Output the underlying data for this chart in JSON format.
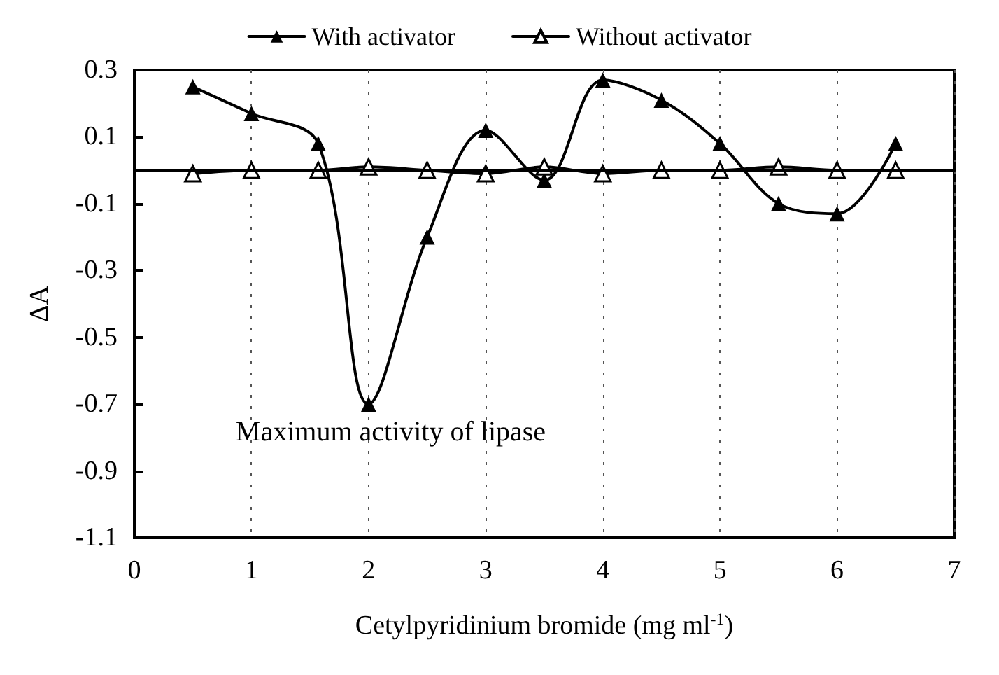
{
  "chart_data": {
    "type": "line",
    "xlabel": "Cetylpyridinium bromide (mg ml$^{-1}$)",
    "ylabel": "ΔA",
    "xlim": [
      0,
      7
    ],
    "xticks": [
      0,
      1,
      2,
      3,
      4,
      5,
      6,
      7
    ],
    "ylim": [
      -1.1,
      0.3
    ],
    "yticks": [
      -1.1,
      -0.9,
      -0.7,
      -0.5,
      -0.3,
      -0.1,
      0.1,
      0.3
    ],
    "x": [
      0.5,
      1,
      1.57,
      2,
      2.5,
      3,
      3.5,
      4,
      4.5,
      5,
      5.5,
      6,
      6.5
    ],
    "series": [
      {
        "name": "With activator",
        "color": "#000000",
        "values": [
          0.25,
          0.17,
          0.08,
          -0.7,
          -0.2,
          0.12,
          -0.03,
          0.27,
          0.21,
          0.08,
          -0.1,
          -0.13,
          0.08
        ]
      },
      {
        "name": "Without activator",
        "color": "#ffffff",
        "values": [
          -0.01,
          0,
          0,
          0.01,
          0,
          -0.01,
          0.01,
          -0.01,
          0,
          0,
          0.01,
          0,
          0
        ]
      }
    ],
    "ref_lines": [
      {
        "axis": "y",
        "value": 0,
        "color": "#000000",
        "line_style": "solid"
      }
    ],
    "annotations": [
      {
        "text": "Maximum activity of lipase",
        "x": 2,
        "y": -0.7
      }
    ],
    "grid": "x",
    "legend": "top",
    "marker": "triangle",
    "line_style": "solid"
  }
}
